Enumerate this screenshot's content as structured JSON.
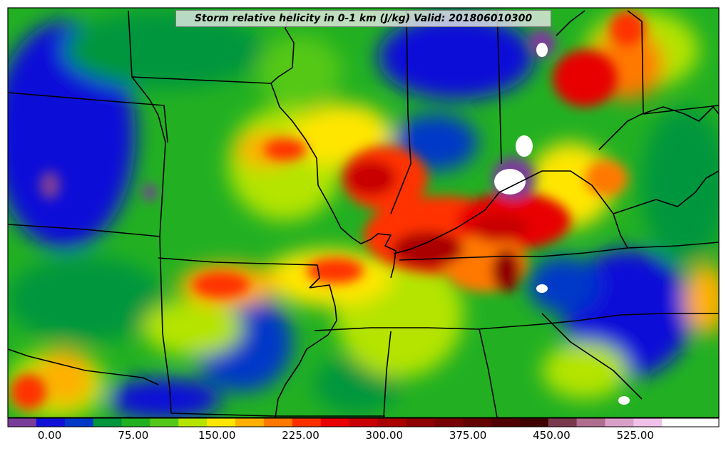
{
  "title": "Storm relative helicity in 0-1 km (J/kg) Valid: 201806010300",
  "colorbar": {
    "colors": [
      "#7a3c9a",
      "#1010d8",
      "#0038c8",
      "#00963c",
      "#22b022",
      "#54c818",
      "#b4e400",
      "#ffe600",
      "#ffb000",
      "#ff7800",
      "#ff3000",
      "#e80000",
      "#c80000",
      "#aa0000",
      "#900000",
      "#780000",
      "#640000",
      "#500000",
      "#400000",
      "#7a3a4e",
      "#b06e8e",
      "#d8a0c8",
      "#f0c0e8",
      "#ffffff",
      "#ffffff"
    ],
    "tick_labels": [
      "0.00",
      "75.00",
      "150.00",
      "225.00",
      "300.00",
      "375.00",
      "450.00",
      "525.00"
    ],
    "tick_values": [
      0,
      75,
      150,
      225,
      300,
      375,
      450,
      525
    ],
    "range": [
      -37.5,
      600
    ]
  }
}
